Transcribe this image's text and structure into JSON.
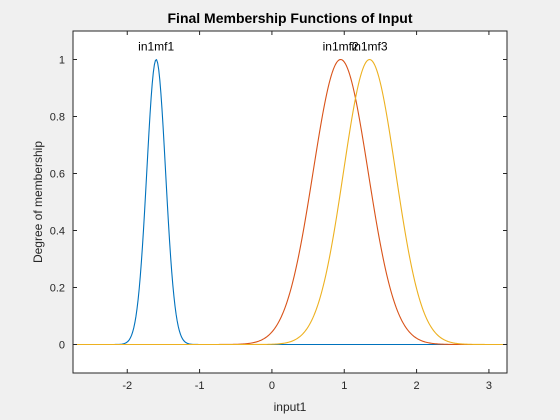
{
  "chart_data": {
    "type": "line",
    "title": "Final Membership Functions of Input",
    "xlabel": "input1",
    "ylabel": "Degree of membership",
    "xlim": [
      -2.75,
      3.25
    ],
    "ylim": [
      -0.1,
      1.1
    ],
    "xticks": [
      -2,
      -1,
      0,
      1,
      2,
      3
    ],
    "yticks": [
      0,
      0.2,
      0.4,
      0.6,
      0.8,
      1
    ],
    "xtick_labels": [
      "-2",
      "-1",
      "0",
      "1",
      "2",
      "3"
    ],
    "ytick_labels": [
      "0",
      "0.2",
      "0.4",
      "0.6",
      "0.8",
      "1"
    ],
    "grid": false,
    "series": [
      {
        "name": "in1mf1",
        "shape": "gaussian",
        "center": -1.6,
        "sigma": 0.13,
        "color": "#0072BD"
      },
      {
        "name": "in1mf2",
        "shape": "gaussian",
        "center": 0.95,
        "sigma": 0.38,
        "color": "#D95319"
      },
      {
        "name": "in1mf3",
        "shape": "gaussian",
        "center": 1.35,
        "sigma": 0.36,
        "color": "#EDB120"
      }
    ]
  }
}
